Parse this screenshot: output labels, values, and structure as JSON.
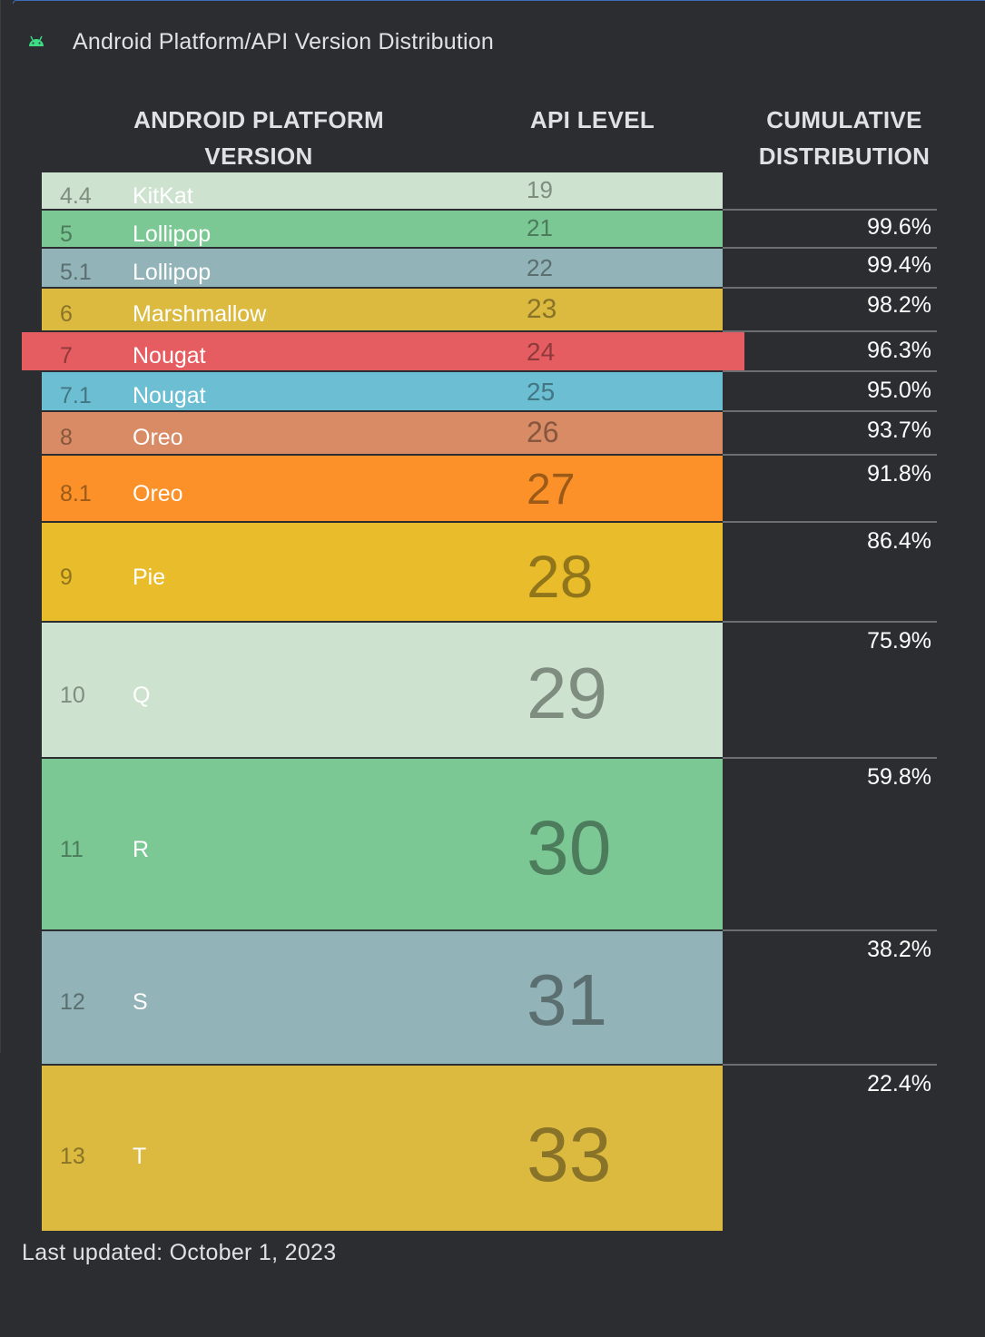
{
  "window": {
    "title": "Android Platform/API Version Distribution",
    "icon": "android-icon",
    "icon_color": "#3ddc84"
  },
  "headers": {
    "platform_line1": "ANDROID PLATFORM",
    "platform_line2": "VERSION",
    "api": "API LEVEL",
    "cumulative_line1": "CUMULATIVE",
    "cumulative_line2": "DISTRIBUTION"
  },
  "rows": [
    {
      "version": "4.4",
      "name": "KitKat",
      "api": "19",
      "cumulative": "",
      "color": "#cde3cf"
    },
    {
      "version": "5",
      "name": "Lollipop",
      "api": "21",
      "cumulative": "99.6%",
      "color": "#7bc894"
    },
    {
      "version": "5.1",
      "name": "Lollipop",
      "api": "22",
      "cumulative": "99.4%",
      "color": "#92b3b7"
    },
    {
      "version": "6",
      "name": "Marshmallow",
      "api": "23",
      "cumulative": "98.2%",
      "color": "#dcba40"
    },
    {
      "version": "7",
      "name": "Nougat",
      "api": "24",
      "cumulative": "96.3%",
      "color": "#e55d60"
    },
    {
      "version": "7.1",
      "name": "Nougat",
      "api": "25",
      "cumulative": "95.0%",
      "color": "#6cbfd3"
    },
    {
      "version": "8",
      "name": "Oreo",
      "api": "26",
      "cumulative": "93.7%",
      "color": "#d88b64"
    },
    {
      "version": "8.1",
      "name": "Oreo",
      "api": "27",
      "cumulative": "91.8%",
      "color": "#fb9128"
    },
    {
      "version": "9",
      "name": "Pie",
      "api": "28",
      "cumulative": "86.4%",
      "color": "#e8bc2b"
    },
    {
      "version": "10",
      "name": "Q",
      "api": "29",
      "cumulative": "75.9%",
      "color": "#cde3cf"
    },
    {
      "version": "11",
      "name": "R",
      "api": "30",
      "cumulative": "59.8%",
      "color": "#7bc894"
    },
    {
      "version": "12",
      "name": "S",
      "api": "31",
      "cumulative": "38.2%",
      "color": "#92b3b7"
    },
    {
      "version": "13",
      "name": "T",
      "api": "33",
      "cumulative": "22.4%",
      "color": "#dcba40"
    }
  ],
  "selected_row": "7",
  "footer": {
    "last_updated": "Last updated: October 1, 2023"
  }
}
